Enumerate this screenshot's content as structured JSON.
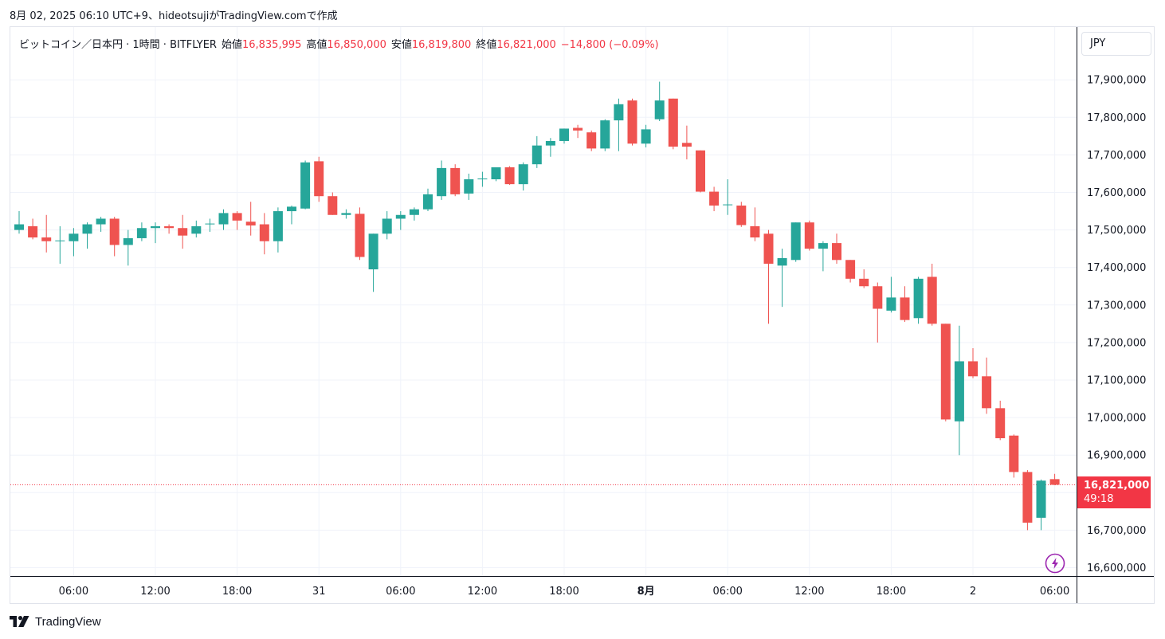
{
  "caption": "8月 02, 2025 06:10 UTC+9、hideotsujiがTradingView.comで作成",
  "brand": {
    "name": "TradingView",
    "logo_icon": "tradingview-logo-icon"
  },
  "legend": {
    "symbol": "ビットコイン／日本円 · 1時間 · BITFLYER",
    "open_label": "始値",
    "open": "16,835,995",
    "high_label": "高値",
    "high": "16,850,000",
    "low_label": "安値",
    "low": "16,819,800",
    "close_label": "終値",
    "close": "16,821,000",
    "change": "−14,800 (−0.09%)"
  },
  "currency": "JPY",
  "price_tag": {
    "price": "16,821,000",
    "countdown": "49:18"
  },
  "colors": {
    "up": "#26a69a",
    "down": "#ef5350",
    "last_price": "#f23645",
    "grid": "#f0f3fa",
    "flash_icon": "#9c27b0"
  },
  "flash_icon": "lightning-bolt-icon",
  "chart_data": {
    "type": "candlestick",
    "timeframe": "1時間",
    "ylim": [
      16580000,
      17980000
    ],
    "y_ticks": [
      16600000,
      16700000,
      16800000,
      16900000,
      17000000,
      17100000,
      17200000,
      17300000,
      17400000,
      17500000,
      17600000,
      17700000,
      17800000,
      17900000
    ],
    "y_tick_labels": [
      "16,600,000",
      "16,700,000",
      "16,800,000",
      "16,900,000",
      "17,000,000",
      "17,100,000",
      "17,200,000",
      "17,300,000",
      "17,400,000",
      "17,500,000",
      "17,600,000",
      "17,700,000",
      "17,800,000",
      "17,900,000"
    ],
    "x_ticks": [
      {
        "index": 4,
        "label": "06:00"
      },
      {
        "index": 10,
        "label": "12:00"
      },
      {
        "index": 16,
        "label": "18:00"
      },
      {
        "index": 22,
        "label": "31"
      },
      {
        "index": 28,
        "label": "06:00"
      },
      {
        "index": 34,
        "label": "12:00"
      },
      {
        "index": 40,
        "label": "18:00"
      },
      {
        "index": 46,
        "label": "8月"
      },
      {
        "index": 52,
        "label": "06:00"
      },
      {
        "index": 58,
        "label": "12:00"
      },
      {
        "index": 64,
        "label": "18:00"
      },
      {
        "index": 70,
        "label": "2"
      },
      {
        "index": 76,
        "label": "06:00"
      }
    ],
    "last_price": 16821000,
    "candles": [
      {
        "o": 17500000,
        "h": 17550000,
        "l": 17490000,
        "c": 17515000
      },
      {
        "o": 17510000,
        "h": 17530000,
        "l": 17475000,
        "c": 17480000
      },
      {
        "o": 17480000,
        "h": 17540000,
        "l": 17440000,
        "c": 17470000
      },
      {
        "o": 17470000,
        "h": 17510000,
        "l": 17410000,
        "c": 17472000
      },
      {
        "o": 17470000,
        "h": 17505000,
        "l": 17430000,
        "c": 17490000
      },
      {
        "o": 17490000,
        "h": 17520000,
        "l": 17450000,
        "c": 17515000
      },
      {
        "o": 17515000,
        "h": 17535000,
        "l": 17495000,
        "c": 17530000
      },
      {
        "o": 17530000,
        "h": 17535000,
        "l": 17430000,
        "c": 17460000
      },
      {
        "o": 17460000,
        "h": 17500000,
        "l": 17405000,
        "c": 17478000
      },
      {
        "o": 17478000,
        "h": 17520000,
        "l": 17470000,
        "c": 17505000
      },
      {
        "o": 17505000,
        "h": 17520000,
        "l": 17465000,
        "c": 17510000
      },
      {
        "o": 17510000,
        "h": 17515000,
        "l": 17490000,
        "c": 17505000
      },
      {
        "o": 17505000,
        "h": 17540000,
        "l": 17450000,
        "c": 17485000
      },
      {
        "o": 17490000,
        "h": 17525000,
        "l": 17480000,
        "c": 17510000
      },
      {
        "o": 17515000,
        "h": 17530000,
        "l": 17495000,
        "c": 17517000
      },
      {
        "o": 17515000,
        "h": 17555000,
        "l": 17500000,
        "c": 17545000
      },
      {
        "o": 17545000,
        "h": 17550000,
        "l": 17500000,
        "c": 17525000
      },
      {
        "o": 17522000,
        "h": 17575000,
        "l": 17485000,
        "c": 17512000
      },
      {
        "o": 17515000,
        "h": 17545000,
        "l": 17435000,
        "c": 17470000
      },
      {
        "o": 17470000,
        "h": 17560000,
        "l": 17440000,
        "c": 17550000
      },
      {
        "o": 17550000,
        "h": 17565000,
        "l": 17515000,
        "c": 17562000
      },
      {
        "o": 17557000,
        "h": 17685000,
        "l": 17555000,
        "c": 17680000
      },
      {
        "o": 17683000,
        "h": 17695000,
        "l": 17575000,
        "c": 17590000
      },
      {
        "o": 17590000,
        "h": 17600000,
        "l": 17540000,
        "c": 17540000
      },
      {
        "o": 17540000,
        "h": 17555000,
        "l": 17530000,
        "c": 17545000
      },
      {
        "o": 17543000,
        "h": 17560000,
        "l": 17420000,
        "c": 17428000
      },
      {
        "o": 17395000,
        "h": 17490000,
        "l": 17335000,
        "c": 17490000
      },
      {
        "o": 17490000,
        "h": 17550000,
        "l": 17475000,
        "c": 17530000
      },
      {
        "o": 17530000,
        "h": 17550000,
        "l": 17500000,
        "c": 17540000
      },
      {
        "o": 17540000,
        "h": 17560000,
        "l": 17525000,
        "c": 17555000
      },
      {
        "o": 17555000,
        "h": 17610000,
        "l": 17550000,
        "c": 17595000
      },
      {
        "o": 17590000,
        "h": 17685000,
        "l": 17580000,
        "c": 17665000
      },
      {
        "o": 17665000,
        "h": 17675000,
        "l": 17590000,
        "c": 17595000
      },
      {
        "o": 17597000,
        "h": 17650000,
        "l": 17580000,
        "c": 17635000
      },
      {
        "o": 17635000,
        "h": 17655000,
        "l": 17615000,
        "c": 17637000
      },
      {
        "o": 17635000,
        "h": 17665000,
        "l": 17630000,
        "c": 17667000
      },
      {
        "o": 17667000,
        "h": 17670000,
        "l": 17620000,
        "c": 17622000
      },
      {
        "o": 17622000,
        "h": 17680000,
        "l": 17605000,
        "c": 17675000
      },
      {
        "o": 17675000,
        "h": 17750000,
        "l": 17665000,
        "c": 17725000
      },
      {
        "o": 17725000,
        "h": 17745000,
        "l": 17695000,
        "c": 17737000
      },
      {
        "o": 17737000,
        "h": 17770000,
        "l": 17730000,
        "c": 17770000
      },
      {
        "o": 17772000,
        "h": 17780000,
        "l": 17745000,
        "c": 17765000
      },
      {
        "o": 17760000,
        "h": 17765000,
        "l": 17710000,
        "c": 17717000
      },
      {
        "o": 17717000,
        "h": 17795000,
        "l": 17710000,
        "c": 17792000
      },
      {
        "o": 17792000,
        "h": 17850000,
        "l": 17710000,
        "c": 17835000
      },
      {
        "o": 17845000,
        "h": 17850000,
        "l": 17725000,
        "c": 17730000
      },
      {
        "o": 17730000,
        "h": 17780000,
        "l": 17720000,
        "c": 17768000
      },
      {
        "o": 17795000,
        "h": 17895000,
        "l": 17790000,
        "c": 17845000
      },
      {
        "o": 17850000,
        "h": 17850000,
        "l": 17715000,
        "c": 17722000
      },
      {
        "o": 17732000,
        "h": 17778000,
        "l": 17688000,
        "c": 17722000
      },
      {
        "o": 17712000,
        "h": 17712000,
        "l": 17600000,
        "c": 17602000
      },
      {
        "o": 17602000,
        "h": 17615000,
        "l": 17550000,
        "c": 17565000
      },
      {
        "o": 17568000,
        "h": 17635000,
        "l": 17540000,
        "c": 17568000
      },
      {
        "o": 17565000,
        "h": 17575000,
        "l": 17508000,
        "c": 17513000
      },
      {
        "o": 17510000,
        "h": 17560000,
        "l": 17470000,
        "c": 17480000
      },
      {
        "o": 17490000,
        "h": 17500000,
        "l": 17250000,
        "c": 17410000
      },
      {
        "o": 17405000,
        "h": 17450000,
        "l": 17295000,
        "c": 17425000
      },
      {
        "o": 17420000,
        "h": 17520000,
        "l": 17415000,
        "c": 17520000
      },
      {
        "o": 17520000,
        "h": 17525000,
        "l": 17445000,
        "c": 17450000
      },
      {
        "o": 17450000,
        "h": 17470000,
        "l": 17390000,
        "c": 17465000
      },
      {
        "o": 17465000,
        "h": 17490000,
        "l": 17410000,
        "c": 17420000
      },
      {
        "o": 17420000,
        "h": 17420000,
        "l": 17360000,
        "c": 17370000
      },
      {
        "o": 17370000,
        "h": 17395000,
        "l": 17345000,
        "c": 17350000
      },
      {
        "o": 17350000,
        "h": 17360000,
        "l": 17200000,
        "c": 17290000
      },
      {
        "o": 17285000,
        "h": 17375000,
        "l": 17280000,
        "c": 17320000
      },
      {
        "o": 17320000,
        "h": 17350000,
        "l": 17255000,
        "c": 17260000
      },
      {
        "o": 17265000,
        "h": 17375000,
        "l": 17250000,
        "c": 17370000
      },
      {
        "o": 17375000,
        "h": 17410000,
        "l": 17245000,
        "c": 17250000
      },
      {
        "o": 17250000,
        "h": 17250000,
        "l": 16990000,
        "c": 16995000
      },
      {
        "o": 16990000,
        "h": 17245000,
        "l": 16900000,
        "c": 17150000
      },
      {
        "o": 17150000,
        "h": 17185000,
        "l": 17105000,
        "c": 17110000
      },
      {
        "o": 17110000,
        "h": 17160000,
        "l": 17010000,
        "c": 17025000
      },
      {
        "o": 17025000,
        "h": 17045000,
        "l": 16940000,
        "c": 16945000
      },
      {
        "o": 16952000,
        "h": 16955000,
        "l": 16840000,
        "c": 16855000
      },
      {
        "o": 16855000,
        "h": 16860000,
        "l": 16700000,
        "c": 16720000
      },
      {
        "o": 16733000,
        "h": 16835000,
        "l": 16700000,
        "c": 16832000
      },
      {
        "o": 16836000,
        "h": 16850000,
        "l": 16820000,
        "c": 16821000
      }
    ]
  }
}
